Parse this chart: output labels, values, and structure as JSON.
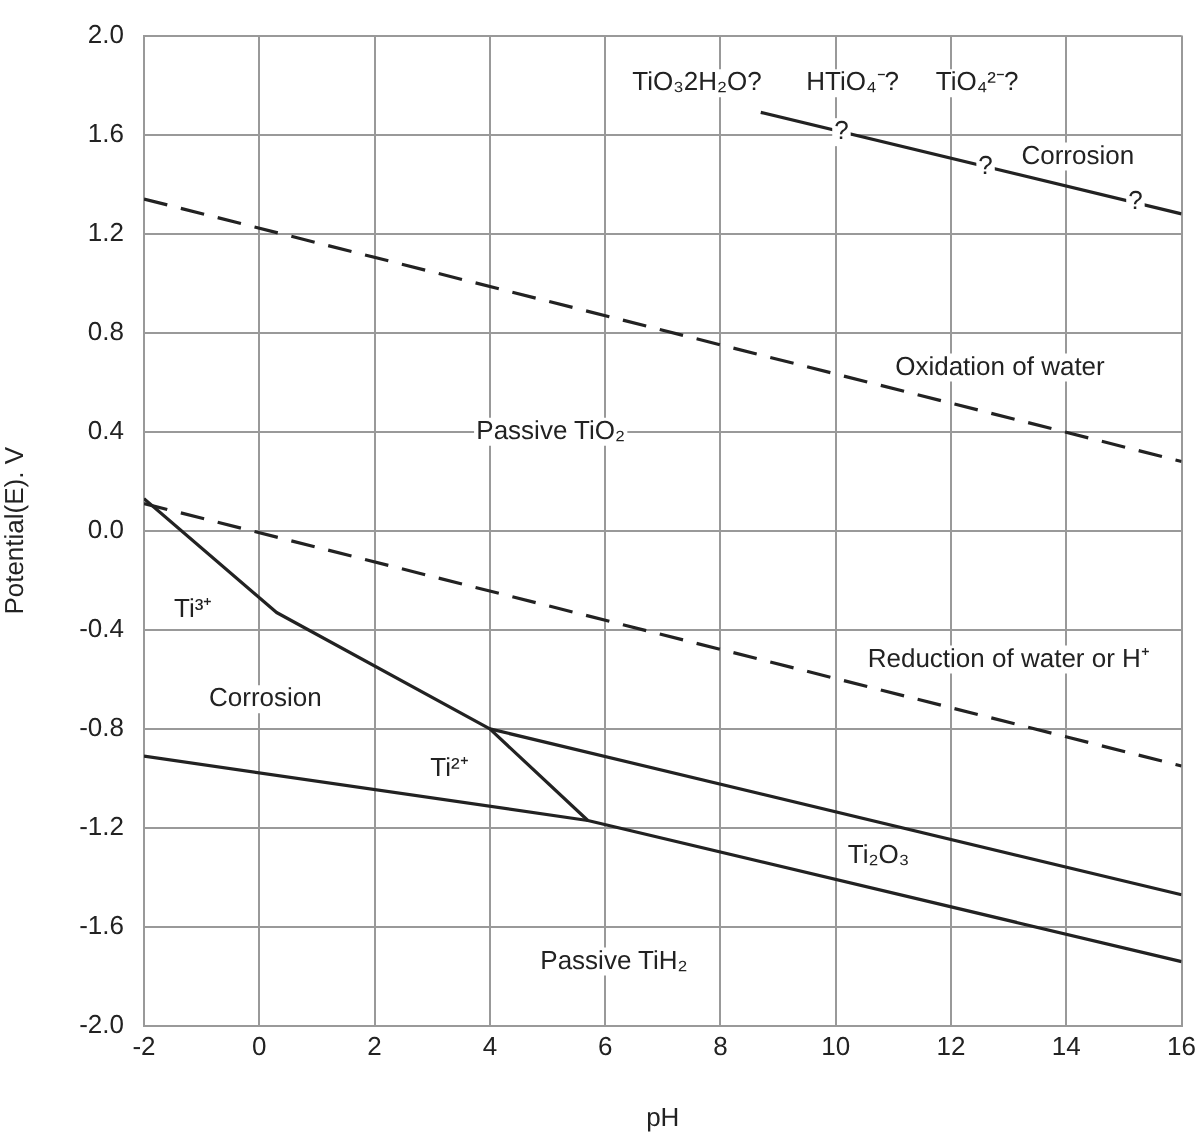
{
  "chart_data": {
    "type": "line",
    "xlabel": "pH",
    "ylabel": "Potential(E). V",
    "xlim": [
      -2,
      16
    ],
    "xticks": [
      -2,
      0,
      2,
      4,
      6,
      8,
      10,
      12,
      14,
      16
    ],
    "ylim": [
      -2,
      2
    ],
    "yticks": [
      {
        "value": -2,
        "label": "-2.0"
      },
      {
        "value": -1.6,
        "label": "-1.6"
      },
      {
        "value": -1.2,
        "label": "-1.2"
      },
      {
        "value": -0.8,
        "label": "-0.8"
      },
      {
        "value": -0.4,
        "label": "-0.4"
      },
      {
        "value": 0,
        "label": "0.0"
      },
      {
        "value": 0.4,
        "label": "0.4"
      },
      {
        "value": 0.8,
        "label": "0.8"
      },
      {
        "value": 1.2,
        "label": "1.2"
      },
      {
        "value": 1.6,
        "label": "1.6"
      },
      {
        "value": 2,
        "label": "2.0"
      }
    ],
    "grid": true,
    "legend": false,
    "marker": "none",
    "series": [
      {
        "color": "#222222",
        "line_style": "dashed",
        "x": [
          -2,
          16
        ],
        "values": [
          1.34,
          0.28
        ]
      },
      {
        "color": "#222222",
        "line_style": "dashed",
        "x": [
          -2,
          16
        ],
        "values": [
          0.11,
          -0.95
        ]
      },
      {
        "color": "#222222",
        "line_style": "solid",
        "x": [
          8.7,
          16
        ],
        "values": [
          1.69,
          1.28
        ]
      },
      {
        "color": "#222222",
        "line_style": "solid",
        "x": [
          -2,
          0.3,
          4,
          5.7
        ],
        "values": [
          0.13,
          -0.33,
          -0.8,
          -1.17
        ]
      },
      {
        "color": "#222222",
        "line_style": "solid",
        "x": [
          4,
          16
        ],
        "values": [
          -0.8,
          -1.47
        ]
      },
      {
        "color": "#222222",
        "line_style": "solid",
        "x": [
          -2,
          5.7,
          16
        ],
        "values": [
          -0.91,
          -1.17,
          -1.74
        ]
      }
    ],
    "annotations": [
      "TiO₃2H₂O?",
      "HTiO₄⁻?",
      "TiO₄²⁻?",
      {
        "text": "?",
        "x": 10.1,
        "y": 1.61
      },
      {
        "text": "?",
        "x": 12.6,
        "y": 1.47
      },
      {
        "text": "?",
        "x": 15.2,
        "y": 1.33
      },
      "Corrosion",
      "Oxidation of water",
      "Passive TiO₂",
      "Ti³⁺",
      "Corrosion",
      "Reduction of water or H⁺",
      "Ti²⁺",
      "Ti₂O₃",
      "Passive TiH₂"
    ]
  }
}
